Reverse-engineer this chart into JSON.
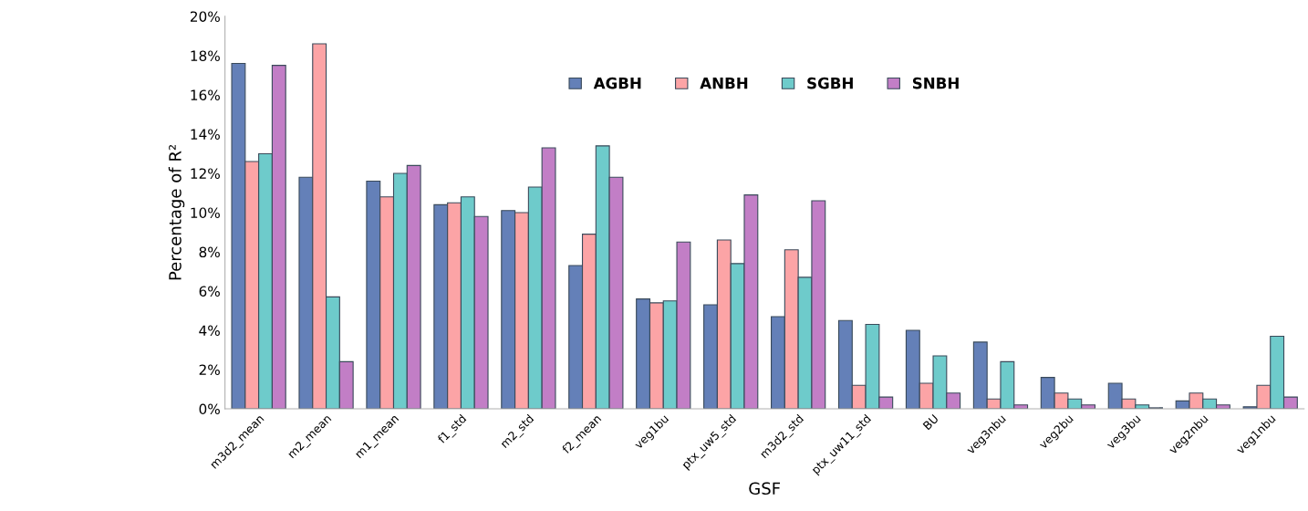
{
  "chart_data": {
    "type": "bar",
    "xlabel": "GSF",
    "ylabel": "Percentage of R²",
    "categories": [
      "m3d2_mean",
      "m2_mean",
      "m1_mean",
      "f1_std",
      "m2_std",
      "f2_mean",
      "veg1bu",
      "ptx_uw5_std",
      "m3d2_std",
      "ptx_uw11_std",
      "BU",
      "veg3nbu",
      "veg2bu",
      "veg3bu",
      "veg2nbu",
      "veg1nbu"
    ],
    "series": [
      {
        "name": "AGBH",
        "color": "#6480b8",
        "values": [
          17.6,
          11.8,
          11.6,
          10.4,
          10.1,
          7.3,
          5.6,
          5.3,
          4.7,
          4.5,
          4.0,
          3.4,
          1.6,
          1.3,
          0.4,
          0.1
        ]
      },
      {
        "name": "ANBH",
        "color": "#fca4a6",
        "values": [
          12.6,
          18.6,
          10.8,
          10.5,
          10.0,
          8.9,
          5.4,
          8.6,
          8.1,
          1.2,
          1.3,
          0.5,
          0.8,
          0.5,
          0.8,
          1.2
        ]
      },
      {
        "name": "SGBH",
        "color": "#6ecbcb",
        "values": [
          13.0,
          5.7,
          12.0,
          10.8,
          11.3,
          13.4,
          5.5,
          7.4,
          6.7,
          4.3,
          2.7,
          2.4,
          0.5,
          0.2,
          0.5,
          3.7
        ]
      },
      {
        "name": "SNBH",
        "color": "#c27ec6",
        "values": [
          17.5,
          2.4,
          12.4,
          9.8,
          13.3,
          11.8,
          8.5,
          10.9,
          10.6,
          0.6,
          0.8,
          0.2,
          0.2,
          0.05,
          0.2,
          0.6
        ]
      }
    ],
    "ylim": [
      0,
      20
    ],
    "yticks": [
      {
        "value": 0,
        "label": "0%"
      },
      {
        "value": 2,
        "label": "2%"
      },
      {
        "value": 4,
        "label": "4%"
      },
      {
        "value": 6,
        "label": "6%"
      },
      {
        "value": 8,
        "label": "8%"
      },
      {
        "value": 10,
        "label": "10%"
      },
      {
        "value": 12,
        "label": "12%"
      },
      {
        "value": 14,
        "label": "14%"
      },
      {
        "value": 16,
        "label": "16%"
      },
      {
        "value": 18,
        "label": "18%"
      },
      {
        "value": 20,
        "label": "20%"
      }
    ],
    "grid": false,
    "legend": "top"
  }
}
